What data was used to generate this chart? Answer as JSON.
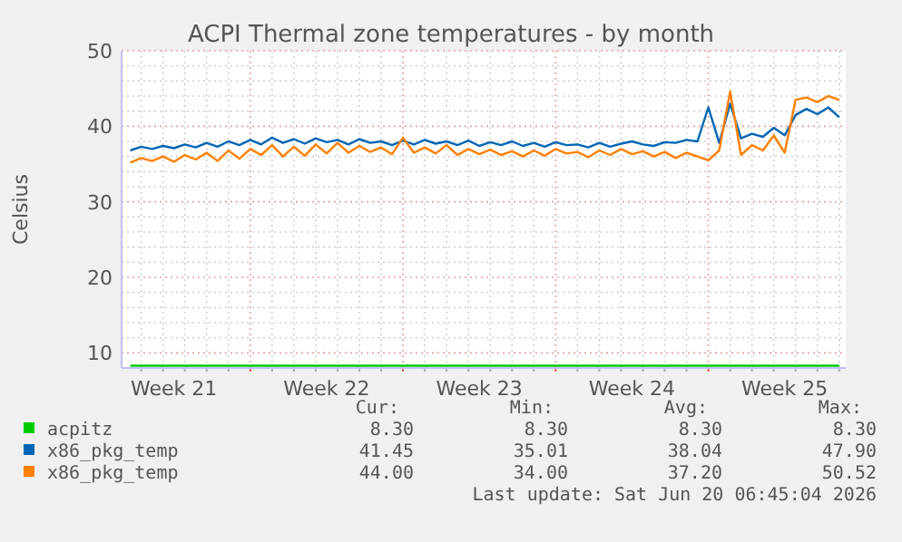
{
  "chart_data": {
    "type": "line",
    "title": "ACPI Thermal zone temperatures - by month",
    "ylabel": "Celsius",
    "categories": [
      null,
      null,
      null,
      null,
      "Week 21",
      null,
      null,
      null,
      null,
      null,
      null,
      null,
      null,
      null,
      null,
      null,
      null,
      null,
      "Week 22",
      null,
      null,
      null,
      null,
      null,
      null,
      null,
      null,
      null,
      null,
      null,
      null,
      null,
      "Week 23",
      null,
      null,
      null,
      null,
      null,
      null,
      null,
      null,
      null,
      null,
      null,
      null,
      null,
      "Week 24",
      null,
      null,
      null,
      null,
      null,
      null,
      null,
      null,
      null,
      null,
      null,
      null,
      null,
      "Week 25",
      null,
      null,
      null,
      null,
      null
    ],
    "ylim": [
      8,
      50
    ],
    "yticks": [
      10,
      {
        "value": 12,
        "label": null
      },
      {
        "value": 14,
        "label": null
      },
      {
        "value": 16,
        "label": null
      },
      {
        "value": 18,
        "label": null
      },
      20,
      {
        "value": 22,
        "label": null
      },
      {
        "value": 24,
        "label": null
      },
      {
        "value": 26,
        "label": null
      },
      {
        "value": 28,
        "label": null
      },
      30,
      {
        "value": 32,
        "label": null
      },
      {
        "value": 34,
        "label": null
      },
      {
        "value": 36,
        "label": null
      },
      {
        "value": 38,
        "label": null
      },
      40,
      {
        "value": 42,
        "label": null
      },
      {
        "value": 44,
        "label": null
      },
      {
        "value": 46,
        "label": null
      },
      {
        "value": 48,
        "label": null
      },
      50
    ],
    "grid": true,
    "legend": "bottom",
    "series": [
      {
        "name": "acpitz",
        "color": "#00cc00",
        "values": [
          8.3,
          8.3,
          8.3,
          8.3,
          8.3,
          8.3,
          8.3,
          8.3,
          8.3,
          8.3,
          8.3,
          8.3,
          8.3,
          8.3,
          8.3,
          8.3,
          8.3,
          8.3,
          8.3,
          8.3,
          8.3,
          8.3,
          8.3,
          8.3,
          8.3,
          8.3,
          8.3,
          8.3,
          8.3,
          8.3,
          8.3,
          8.3,
          8.3,
          8.3,
          8.3,
          8.3,
          8.3,
          8.3,
          8.3,
          8.3,
          8.3,
          8.3,
          8.3,
          8.3,
          8.3,
          8.3,
          8.3,
          8.3,
          8.3,
          8.3,
          8.3,
          8.3,
          8.3,
          8.3,
          8.3,
          8.3,
          8.3,
          8.3,
          8.3,
          8.3,
          8.3,
          8.3,
          8.3,
          8.3,
          8.3,
          8.3
        ]
      },
      {
        "name": "x86_pkg_temp",
        "color": "#0066b3",
        "values": [
          36.8,
          37.3,
          37.0,
          37.4,
          37.1,
          37.6,
          37.2,
          37.8,
          37.3,
          38.0,
          37.5,
          38.2,
          37.6,
          38.5,
          37.8,
          38.3,
          37.7,
          38.4,
          37.9,
          38.2,
          37.6,
          38.3,
          37.8,
          38.0,
          37.5,
          38.1,
          37.6,
          38.2,
          37.7,
          38.0,
          37.5,
          38.1,
          37.4,
          37.9,
          37.5,
          38.0,
          37.4,
          37.8,
          37.3,
          37.9,
          37.5,
          37.6,
          37.2,
          37.8,
          37.3,
          37.7,
          38.0,
          37.6,
          37.4,
          37.9,
          37.8,
          38.2,
          38.0,
          42.5,
          37.8,
          43.0,
          38.4,
          39.0,
          38.6,
          39.8,
          38.8,
          41.5,
          42.3,
          41.6,
          42.5,
          41.2
        ]
      },
      {
        "name": "x86_pkg_temp",
        "color": "#ff8000",
        "values": [
          35.2,
          35.8,
          35.4,
          36.0,
          35.3,
          36.2,
          35.6,
          36.5,
          35.4,
          36.8,
          35.7,
          37.0,
          36.2,
          37.5,
          36.0,
          37.3,
          36.1,
          37.6,
          36.4,
          37.8,
          36.5,
          37.4,
          36.6,
          37.2,
          36.3,
          38.5,
          36.5,
          37.2,
          36.4,
          37.5,
          36.2,
          37.0,
          36.3,
          36.9,
          36.2,
          36.7,
          36.0,
          36.8,
          36.1,
          37.0,
          36.4,
          36.6,
          35.9,
          36.8,
          36.2,
          37.0,
          36.3,
          36.7,
          36.0,
          36.6,
          35.8,
          36.5,
          36.0,
          35.5,
          36.8,
          44.6,
          36.2,
          37.5,
          36.8,
          38.8,
          36.5,
          43.5,
          43.8,
          43.2,
          44.0,
          43.5
        ]
      }
    ],
    "annotations": [
      "Cur:",
      "Min:",
      "Avg:",
      "Max:",
      "8.30",
      "8.30",
      "8.30",
      "8.30",
      "41.45",
      "35.01",
      "38.04",
      "47.90",
      "44.00",
      "34.00",
      "37.20",
      "50.52",
      "Last update: Sat Jun 20 06:45:04 2026"
    ]
  }
}
